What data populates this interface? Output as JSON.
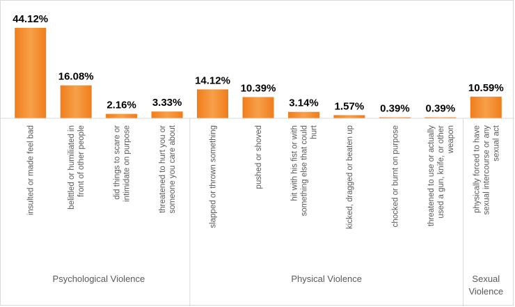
{
  "chart_data": {
    "type": "bar",
    "title": "",
    "xlabel": "",
    "ylabel": "",
    "ylim": [
      0,
      44.12
    ],
    "grid": false,
    "legend": "none",
    "bar_color": "#f07d1c",
    "bar_color_light": "#f7a049",
    "categories": [
      "insulted or made feel bad",
      "belittled or humiliated in front of other people",
      "did things to scare or intimidate on purpose",
      "threatened to hurt you or someone you care about",
      "slapped or thrown something",
      "pushed or shoved",
      "hit with his fist or with something else that could hurt",
      "kicked, dragged or beaten up",
      "chocked or burnt on purpose",
      "threatened to use or actually used a gun, knife, or other weapon",
      "physically forced to have sexual intercourse or any sexual act"
    ],
    "category_lines": [
      [
        "insulted or made feel bad"
      ],
      [
        "belittled or humiliated in",
        "front of other people"
      ],
      [
        "did things to scare or",
        "intimidate on purpose"
      ],
      [
        "threatened to hurt you or",
        "someone you care about"
      ],
      [
        "slapped or thrown something"
      ],
      [
        "pushed or shoved"
      ],
      [
        "hit with his fist or with",
        "something else that could",
        "hurt"
      ],
      [
        "kicked, dragged or beaten up"
      ],
      [
        "chocked or burnt on purpose"
      ],
      [
        "threatened to use or actually",
        "used a gun, knife, or other",
        "weapon"
      ],
      [
        "physically forced to have",
        "sexual intercourse or any",
        "sexual act"
      ]
    ],
    "values": [
      44.12,
      16.08,
      2.16,
      3.33,
      14.12,
      10.39,
      3.14,
      1.57,
      0.39,
      0.39,
      10.59
    ],
    "data_labels": [
      "44.12%",
      "16.08%",
      "2.16%",
      "3.33%",
      "14.12%",
      "10.39%",
      "3.14%",
      "1.57%",
      "0.39%",
      "0.39%",
      "10.59%"
    ],
    "groups": [
      {
        "label": "Psychological Violence",
        "lines": [
          "Psychological Violence"
        ],
        "start": 0,
        "end": 3
      },
      {
        "label": "Physical Violence",
        "lines": [
          "Physical Violence"
        ],
        "start": 4,
        "end": 9
      },
      {
        "label": "Sexual Violence",
        "lines": [
          "Sexual",
          "Violence"
        ],
        "start": 10,
        "end": 10
      }
    ]
  }
}
